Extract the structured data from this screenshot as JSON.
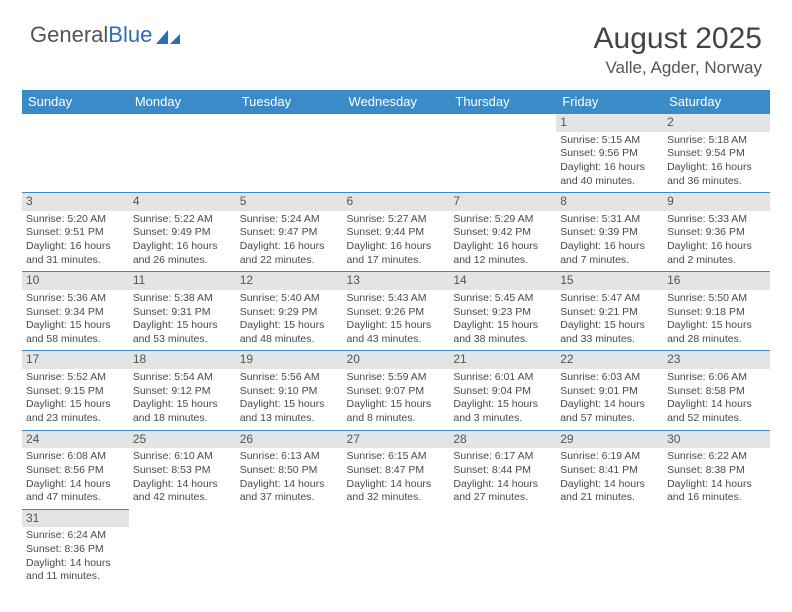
{
  "logo": {
    "word1": "General",
    "word2": "Blue"
  },
  "title": "August 2025",
  "location": "Valle, Agder, Norway",
  "day_headers": [
    "Sunday",
    "Monday",
    "Tuesday",
    "Wednesday",
    "Thursday",
    "Friday",
    "Saturday"
  ],
  "colors": {
    "header_bg": "#3b8bc9",
    "header_text": "#ffffff",
    "border": "#3b8bc9",
    "daynum_bg": "#e4e4e4",
    "text": "#4a4a4a",
    "logo_gray": "#555555",
    "logo_blue": "#2c6fb5"
  },
  "weeks": [
    [
      null,
      null,
      null,
      null,
      null,
      {
        "n": "1",
        "sr": "Sunrise: 5:15 AM",
        "ss": "Sunset: 9:56 PM",
        "dl": "Daylight: 16 hours and 40 minutes."
      },
      {
        "n": "2",
        "sr": "Sunrise: 5:18 AM",
        "ss": "Sunset: 9:54 PM",
        "dl": "Daylight: 16 hours and 36 minutes."
      }
    ],
    [
      {
        "n": "3",
        "sr": "Sunrise: 5:20 AM",
        "ss": "Sunset: 9:51 PM",
        "dl": "Daylight: 16 hours and 31 minutes."
      },
      {
        "n": "4",
        "sr": "Sunrise: 5:22 AM",
        "ss": "Sunset: 9:49 PM",
        "dl": "Daylight: 16 hours and 26 minutes."
      },
      {
        "n": "5",
        "sr": "Sunrise: 5:24 AM",
        "ss": "Sunset: 9:47 PM",
        "dl": "Daylight: 16 hours and 22 minutes."
      },
      {
        "n": "6",
        "sr": "Sunrise: 5:27 AM",
        "ss": "Sunset: 9:44 PM",
        "dl": "Daylight: 16 hours and 17 minutes."
      },
      {
        "n": "7",
        "sr": "Sunrise: 5:29 AM",
        "ss": "Sunset: 9:42 PM",
        "dl": "Daylight: 16 hours and 12 minutes."
      },
      {
        "n": "8",
        "sr": "Sunrise: 5:31 AM",
        "ss": "Sunset: 9:39 PM",
        "dl": "Daylight: 16 hours and 7 minutes."
      },
      {
        "n": "9",
        "sr": "Sunrise: 5:33 AM",
        "ss": "Sunset: 9:36 PM",
        "dl": "Daylight: 16 hours and 2 minutes."
      }
    ],
    [
      {
        "n": "10",
        "sr": "Sunrise: 5:36 AM",
        "ss": "Sunset: 9:34 PM",
        "dl": "Daylight: 15 hours and 58 minutes."
      },
      {
        "n": "11",
        "sr": "Sunrise: 5:38 AM",
        "ss": "Sunset: 9:31 PM",
        "dl": "Daylight: 15 hours and 53 minutes."
      },
      {
        "n": "12",
        "sr": "Sunrise: 5:40 AM",
        "ss": "Sunset: 9:29 PM",
        "dl": "Daylight: 15 hours and 48 minutes."
      },
      {
        "n": "13",
        "sr": "Sunrise: 5:43 AM",
        "ss": "Sunset: 9:26 PM",
        "dl": "Daylight: 15 hours and 43 minutes."
      },
      {
        "n": "14",
        "sr": "Sunrise: 5:45 AM",
        "ss": "Sunset: 9:23 PM",
        "dl": "Daylight: 15 hours and 38 minutes."
      },
      {
        "n": "15",
        "sr": "Sunrise: 5:47 AM",
        "ss": "Sunset: 9:21 PM",
        "dl": "Daylight: 15 hours and 33 minutes."
      },
      {
        "n": "16",
        "sr": "Sunrise: 5:50 AM",
        "ss": "Sunset: 9:18 PM",
        "dl": "Daylight: 15 hours and 28 minutes."
      }
    ],
    [
      {
        "n": "17",
        "sr": "Sunrise: 5:52 AM",
        "ss": "Sunset: 9:15 PM",
        "dl": "Daylight: 15 hours and 23 minutes."
      },
      {
        "n": "18",
        "sr": "Sunrise: 5:54 AM",
        "ss": "Sunset: 9:12 PM",
        "dl": "Daylight: 15 hours and 18 minutes."
      },
      {
        "n": "19",
        "sr": "Sunrise: 5:56 AM",
        "ss": "Sunset: 9:10 PM",
        "dl": "Daylight: 15 hours and 13 minutes."
      },
      {
        "n": "20",
        "sr": "Sunrise: 5:59 AM",
        "ss": "Sunset: 9:07 PM",
        "dl": "Daylight: 15 hours and 8 minutes."
      },
      {
        "n": "21",
        "sr": "Sunrise: 6:01 AM",
        "ss": "Sunset: 9:04 PM",
        "dl": "Daylight: 15 hours and 3 minutes."
      },
      {
        "n": "22",
        "sr": "Sunrise: 6:03 AM",
        "ss": "Sunset: 9:01 PM",
        "dl": "Daylight: 14 hours and 57 minutes."
      },
      {
        "n": "23",
        "sr": "Sunrise: 6:06 AM",
        "ss": "Sunset: 8:58 PM",
        "dl": "Daylight: 14 hours and 52 minutes."
      }
    ],
    [
      {
        "n": "24",
        "sr": "Sunrise: 6:08 AM",
        "ss": "Sunset: 8:56 PM",
        "dl": "Daylight: 14 hours and 47 minutes."
      },
      {
        "n": "25",
        "sr": "Sunrise: 6:10 AM",
        "ss": "Sunset: 8:53 PM",
        "dl": "Daylight: 14 hours and 42 minutes."
      },
      {
        "n": "26",
        "sr": "Sunrise: 6:13 AM",
        "ss": "Sunset: 8:50 PM",
        "dl": "Daylight: 14 hours and 37 minutes."
      },
      {
        "n": "27",
        "sr": "Sunrise: 6:15 AM",
        "ss": "Sunset: 8:47 PM",
        "dl": "Daylight: 14 hours and 32 minutes."
      },
      {
        "n": "28",
        "sr": "Sunrise: 6:17 AM",
        "ss": "Sunset: 8:44 PM",
        "dl": "Daylight: 14 hours and 27 minutes."
      },
      {
        "n": "29",
        "sr": "Sunrise: 6:19 AM",
        "ss": "Sunset: 8:41 PM",
        "dl": "Daylight: 14 hours and 21 minutes."
      },
      {
        "n": "30",
        "sr": "Sunrise: 6:22 AM",
        "ss": "Sunset: 8:38 PM",
        "dl": "Daylight: 14 hours and 16 minutes."
      }
    ],
    [
      {
        "n": "31",
        "sr": "Sunrise: 6:24 AM",
        "ss": "Sunset: 8:36 PM",
        "dl": "Daylight: 14 hours and 11 minutes."
      },
      null,
      null,
      null,
      null,
      null,
      null
    ]
  ]
}
